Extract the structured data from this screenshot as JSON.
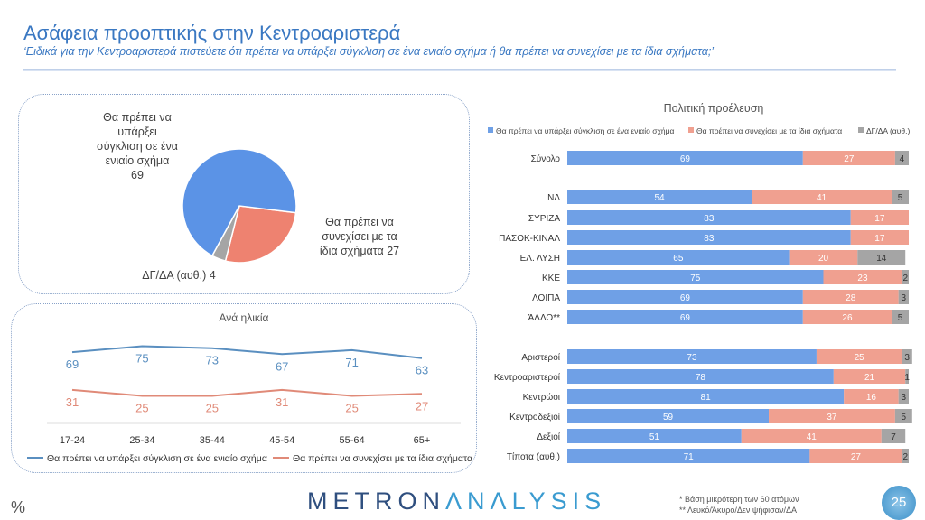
{
  "header": {
    "title": "Ασάφεια προοπτικής στην Κεντροαριστερά",
    "subtitle": "‘Ειδικά για την Κεντροαριστερά πιστεύετε ότι πρέπει να υπάρξει σύγκλιση σε ένα ενιαίο σχήμα ή θα πρέπει να συνεχίσει με τα ίδια σχήματα;’"
  },
  "colors": {
    "blue": "#5b93e6",
    "salmon": "#ee8270",
    "grey": "#a5a5a5",
    "bar_blue": "#6fa0e6",
    "bar_salmon": "#f0a090",
    "line_blue": "#5a8fc0",
    "line_salmon": "#e08a78"
  },
  "chart_data": [
    {
      "type": "pie",
      "categories": [
        "Θα πρέπει να υπάρξει σύγκλιση σε ένα ενιαίο σχήμα",
        "Θα πρέπει να συνεχίσει με τα ίδια σχήματα",
        "ΔΓ/ΔΑ (αυθ.)"
      ],
      "values": [
        69,
        27,
        4
      ],
      "labels": [
        "Θα πρέπει να υπάρξει σύγκλιση σε ένα ενιαίο σχήμα 69",
        "Θα πρέπει να συνεχίσει με τα ίδια σχήματα 27",
        "ΔΓ/ΔΑ (αυθ.) 4"
      ]
    },
    {
      "type": "line",
      "title": "Ανά ηλικία",
      "categories": [
        "17-24",
        "25-34",
        "35-44",
        "45-54",
        "55-64",
        "65+"
      ],
      "series": [
        {
          "name": "Θα πρέπει να υπάρξει σύγκλιση σε ένα ενιαίο σχήμα",
          "values": [
            69,
            75,
            73,
            67,
            71,
            63
          ]
        },
        {
          "name": "Θα πρέπει να συνεχίσει με τα ίδια σχήματα",
          "values": [
            31,
            25,
            25,
            31,
            25,
            27
          ]
        }
      ]
    },
    {
      "type": "bar",
      "orientation": "horizontal",
      "stacked": true,
      "title": "Πολιτική προέλευση",
      "legend": "top",
      "categories": [
        "Σύνολο",
        "ΝΔ",
        "ΣΥΡΙΖΑ",
        "ΠΑΣΟΚ-ΚΙΝΑΛ",
        "ΕΛ. ΛΥΣΗ",
        "ΚΚΕ",
        "ΛΟΙΠΑ",
        "ΆΛΛΟ**",
        "Αριστεροί",
        "Κεντροαριστεροί",
        "Κεντρώοι",
        "Κεντροδεξιοί",
        "Δεξιοί",
        "Τίποτα (αυθ.)"
      ],
      "series": [
        {
          "name": "Θα πρέπει να υπάρξει σύγκλιση σε ένα ενιαίο σχήμα",
          "values": [
            69,
            54,
            83,
            83,
            65,
            75,
            69,
            69,
            73,
            78,
            81,
            59,
            51,
            71
          ]
        },
        {
          "name": "Θα πρέπει να συνεχίσει με τα ίδια σχήματα",
          "values": [
            27,
            41,
            17,
            17,
            20,
            23,
            28,
            26,
            25,
            21,
            16,
            37,
            41,
            27
          ]
        },
        {
          "name": "ΔΓ/ΔΑ (αυθ.)",
          "values": [
            4,
            5,
            null,
            null,
            14,
            2,
            3,
            5,
            3,
            1,
            3,
            5,
            7,
            2
          ]
        }
      ]
    }
  ],
  "footer": {
    "percent": "%",
    "logo_a": "METRON",
    "logo_b": "ΛNΛLYSIS",
    "note1": "*  Βάση μικρότερη των 60 ατόμων",
    "note2": "** Λευκό/Άκυρο/Δεν ψήφισαν/ΔΑ",
    "page": "25"
  }
}
